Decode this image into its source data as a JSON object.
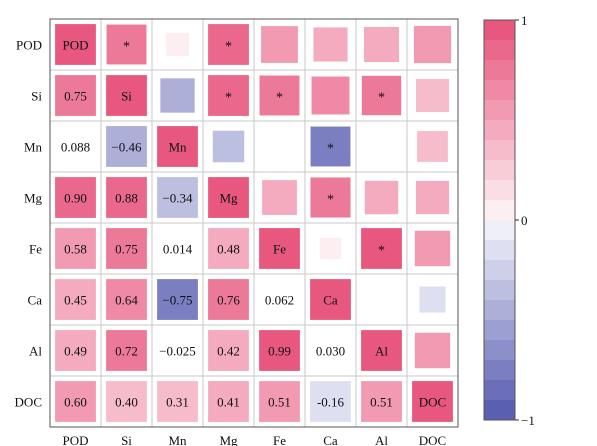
{
  "chart_data": {
    "type": "heatmap",
    "title": "",
    "variables": [
      "POD",
      "Si",
      "Mn",
      "Mg",
      "Fe",
      "Ca",
      "Al",
      "DOC"
    ],
    "lower_values": [
      [
        null,
        null,
        null,
        null,
        null,
        null,
        null,
        null
      ],
      [
        0.75,
        null,
        null,
        null,
        null,
        null,
        null,
        null
      ],
      [
        0.088,
        -0.46,
        null,
        null,
        null,
        null,
        null,
        null
      ],
      [
        0.9,
        0.88,
        -0.34,
        null,
        null,
        null,
        null,
        null
      ],
      [
        0.58,
        0.75,
        0.014,
        0.48,
        null,
        null,
        null,
        null
      ],
      [
        0.45,
        0.64,
        -0.75,
        0.76,
        0.062,
        null,
        null,
        null
      ],
      [
        0.49,
        0.72,
        -0.025,
        0.42,
        0.99,
        0.03,
        null,
        null
      ],
      [
        0.6,
        0.4,
        0.31,
        0.41,
        0.51,
        -0.16,
        0.51,
        null
      ]
    ],
    "lower_labels": [
      [
        null,
        null,
        null,
        null,
        null,
        null,
        null,
        null
      ],
      [
        "0.75",
        null,
        null,
        null,
        null,
        null,
        null,
        null
      ],
      [
        "0.088",
        "−0.46",
        null,
        null,
        null,
        null,
        null,
        null
      ],
      [
        "0.90",
        "0.88",
        "−0.34",
        null,
        null,
        null,
        null,
        null
      ],
      [
        "0.58",
        "0.75",
        "0.014",
        "0.48",
        null,
        null,
        null,
        null
      ],
      [
        "0.45",
        "0.64",
        "−0.75",
        "0.76",
        "0.062",
        null,
        null,
        null
      ],
      [
        "0.49",
        "0.72",
        "−0.025",
        "0.42",
        "0.99",
        "0.030",
        null,
        null
      ],
      [
        "0.60",
        "0.40",
        "0.31",
        "0.41",
        "0.51",
        "-0.16",
        "0.51",
        null
      ]
    ],
    "significant_marker": "*",
    "significant_upper": [
      [
        false,
        true,
        false,
        true,
        false,
        false,
        false,
        false
      ],
      [
        false,
        false,
        false,
        true,
        true,
        false,
        true,
        false
      ],
      [
        false,
        false,
        false,
        false,
        false,
        true,
        false,
        false
      ],
      [
        false,
        false,
        false,
        false,
        false,
        true,
        false,
        false
      ],
      [
        false,
        false,
        false,
        false,
        false,
        false,
        true,
        false
      ],
      [
        false,
        false,
        false,
        false,
        false,
        false,
        false,
        false
      ],
      [
        false,
        false,
        false,
        false,
        false,
        false,
        false,
        false
      ],
      [
        false,
        false,
        false,
        false,
        false,
        false,
        false,
        false
      ]
    ],
    "colorbar": {
      "min": -1,
      "max": 1,
      "ticks": [
        1,
        0,
        -1
      ],
      "tick_labels": [
        "1",
        "0",
        "−1"
      ],
      "steps": 20
    },
    "colors": {
      "positive": "#e8577e",
      "neutral": "#ffffff",
      "negative": "#5a5fb2",
      "grid": "#c8c8c8",
      "frame": "#555555"
    },
    "legend_position": "right"
  }
}
